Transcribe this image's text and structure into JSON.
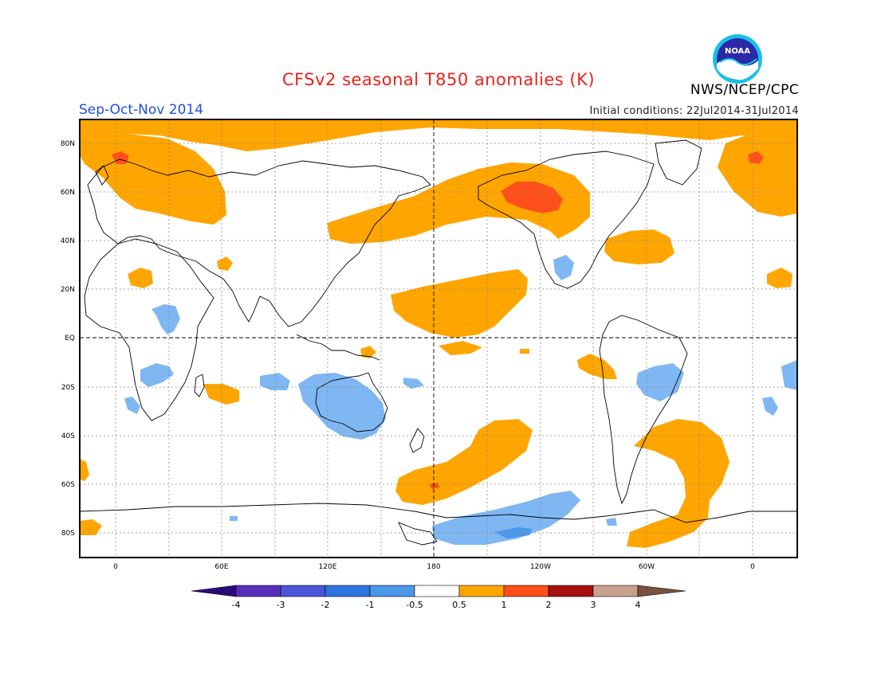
{
  "title": "CFSv2 seasonal T850 anomalies (K)",
  "season": "Sep-Oct-Nov 2014",
  "initial_conditions": "Initial conditions: 22Jul2014-31Jul2014",
  "agency": "NWS/NCEP/CPC",
  "logo_text": "NOAA",
  "colors": {
    "title": "#e8231a",
    "season": "#1f4fe0",
    "warm1": "#ffa500",
    "warm2": "#ff4f1a",
    "cool1": "#7fb7f2"
  },
  "map": {
    "lat_labels": [
      "80N",
      "60N",
      "40N",
      "20N",
      "EQ",
      "20S",
      "40S",
      "60S",
      "80S"
    ],
    "lon_labels": [
      "0",
      "60E",
      "120E",
      "180",
      "120W",
      "60W",
      "0"
    ]
  },
  "colorbar": {
    "labels": [
      "-4",
      "-3",
      "-2",
      "-1",
      "-0.5",
      "0.5",
      "1",
      "2",
      "3",
      "4"
    ],
    "colors": [
      "#5a2db8",
      "#4a55d8",
      "#2f73de",
      "#4b98ea",
      "#7fb7f2",
      "#ffffff",
      "#ffa500",
      "#ff4f1a",
      "#a50f0f",
      "#c8a090"
    ],
    "end_low": "#2a0a7a",
    "end_high": "#7a5040"
  }
}
